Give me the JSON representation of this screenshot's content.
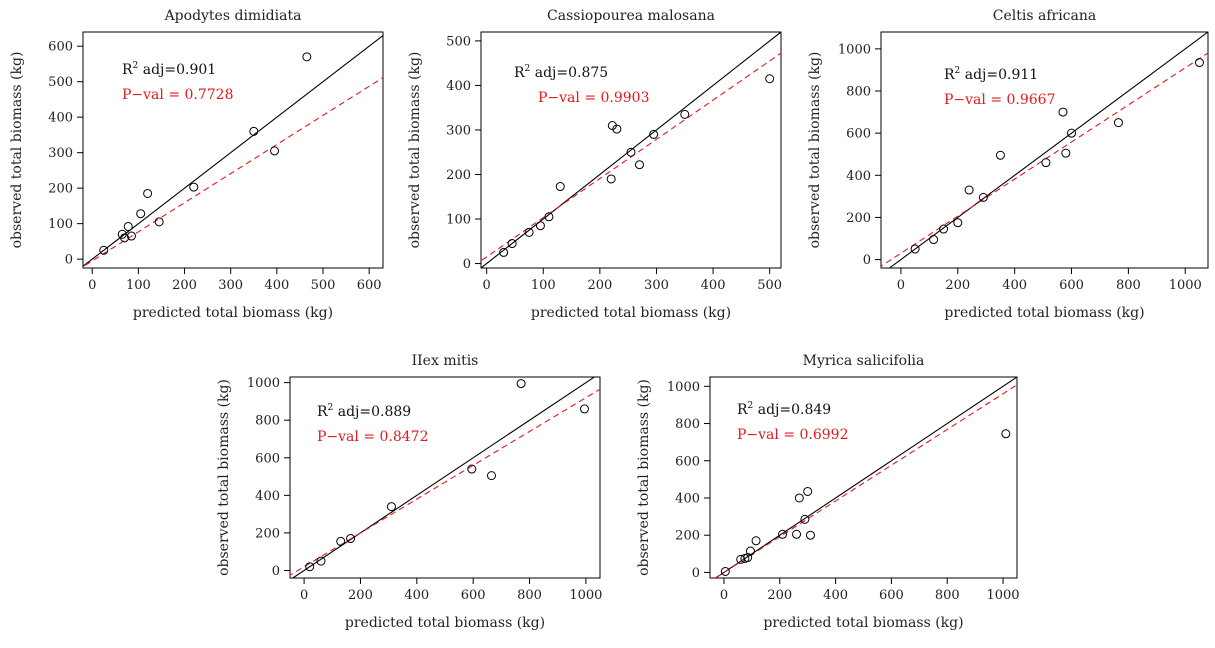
{
  "chart_data": [
    {
      "type": "scatter",
      "title": "Apodytes dimidiata",
      "xlabel": "predicted total biomass (kg)",
      "ylabel": "observed total biomass (kg)",
      "xlim": [
        -20,
        630
      ],
      "ylim": [
        -25,
        640
      ],
      "xticks": [
        0,
        100,
        200,
        300,
        400,
        500,
        600
      ],
      "yticks": [
        0,
        100,
        200,
        300,
        400,
        500,
        600
      ],
      "r2_label": "R",
      "r2_sup": "2",
      "r2_text": " adj=0.901",
      "pval_text": "P−val = 0.7728",
      "fit": {
        "slope": 0.82,
        "intercept": -5
      },
      "x": [
        25,
        65,
        70,
        78,
        85,
        105,
        120,
        145,
        220,
        350,
        395,
        465
      ],
      "y": [
        25,
        70,
        60,
        92,
        65,
        128,
        185,
        105,
        203,
        360,
        305,
        570
      ]
    },
    {
      "type": "scatter",
      "title": "Cassiopourea malosana",
      "xlabel": "predicted total biomass (kg)",
      "ylabel": "observed total biomass (kg)",
      "xlim": [
        -10,
        520
      ],
      "ylim": [
        -10,
        520
      ],
      "xticks": [
        0,
        100,
        200,
        300,
        400,
        500
      ],
      "yticks": [
        0,
        100,
        200,
        300,
        400,
        500
      ],
      "r2_label": "R",
      "r2_sup": "2",
      "r2_text": " adj=0.875",
      "pval_text": "P−val = 0.9903",
      "fit": {
        "slope": 0.88,
        "intercept": 15
      },
      "x": [
        30,
        45,
        75,
        95,
        110,
        130,
        220,
        222,
        230,
        255,
        270,
        295,
        350,
        500
      ],
      "y": [
        25,
        45,
        70,
        85,
        105,
        173,
        190,
        310,
        302,
        250,
        222,
        290,
        335,
        415
      ]
    },
    {
      "type": "scatter",
      "title": "Celtis africana",
      "xlabel": "predicted total biomass (kg)",
      "ylabel": "observed total biomass (kg)",
      "xlim": [
        -70,
        1080
      ],
      "ylim": [
        -40,
        1080
      ],
      "xticks": [
        0,
        200,
        400,
        600,
        800,
        1000
      ],
      "yticks": [
        0,
        200,
        400,
        600,
        800,
        1000
      ],
      "r2_label": "R",
      "r2_sup": "2",
      "r2_text": " adj=0.911",
      "pval_text": "P−val = 0.9667",
      "fit": {
        "slope": 0.88,
        "intercept": 30
      },
      "x": [
        50,
        115,
        150,
        200,
        240,
        290,
        350,
        510,
        570,
        580,
        600,
        765,
        1050
      ],
      "y": [
        50,
        95,
        145,
        175,
        330,
        295,
        495,
        460,
        700,
        505,
        600,
        650,
        935
      ]
    },
    {
      "type": "scatter",
      "title": "IIex mitis",
      "xlabel": "predicted total biomass (kg)",
      "ylabel": "observed total biomass (kg)",
      "xlim": [
        -50,
        1050
      ],
      "ylim": [
        -40,
        1030
      ],
      "xticks": [
        0,
        200,
        400,
        600,
        800,
        1000
      ],
      "yticks": [
        0,
        200,
        400,
        600,
        800,
        1000
      ],
      "r2_label": "R",
      "r2_sup": "2",
      "r2_text": " adj=0.889",
      "pval_text": "P−val = 0.8472",
      "fit": {
        "slope": 0.9,
        "intercept": 20
      },
      "x": [
        20,
        60,
        130,
        165,
        310,
        595,
        665,
        770,
        995
      ],
      "y": [
        20,
        50,
        155,
        170,
        340,
        540,
        505,
        995,
        860
      ]
    },
    {
      "type": "scatter",
      "title": "Myrica salicifolia",
      "xlabel": "predicted total biomass (kg)",
      "ylabel": "observed total biomass (kg)",
      "xlim": [
        -50,
        1050
      ],
      "ylim": [
        -30,
        1050
      ],
      "xticks": [
        0,
        200,
        400,
        600,
        800,
        1000
      ],
      "yticks": [
        0,
        200,
        400,
        600,
        800,
        1000
      ],
      "r2_label": "R",
      "r2_sup": "2",
      "r2_text": " adj=0.849",
      "pval_text": "P−val = 0.6992",
      "fit": {
        "slope": 0.96,
        "intercept": 0
      },
      "x": [
        5,
        60,
        75,
        85,
        95,
        115,
        210,
        260,
        270,
        290,
        300,
        310,
        1010
      ],
      "y": [
        5,
        70,
        75,
        80,
        115,
        170,
        205,
        205,
        400,
        285,
        435,
        200,
        745
      ]
    }
  ]
}
